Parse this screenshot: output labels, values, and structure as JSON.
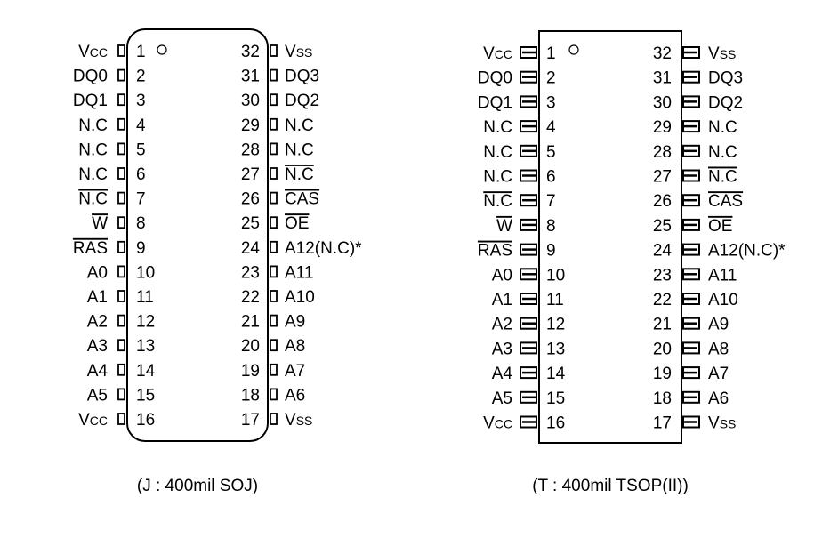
{
  "soj": {
    "caption": "(J : 400mil SOJ)",
    "left_pins": [
      {
        "num": "1",
        "label": "VCC"
      },
      {
        "num": "2",
        "label": "DQ0"
      },
      {
        "num": "3",
        "label": "DQ1"
      },
      {
        "num": "4",
        "label": "N.C"
      },
      {
        "num": "5",
        "label": "N.C"
      },
      {
        "num": "6",
        "label": "N.C"
      },
      {
        "num": "7",
        "label": "N.C"
      },
      {
        "num": "8",
        "label": "W"
      },
      {
        "num": "9",
        "label": "RAS"
      },
      {
        "num": "10",
        "label": "A0"
      },
      {
        "num": "11",
        "label": "A1"
      },
      {
        "num": "12",
        "label": "A2"
      },
      {
        "num": "13",
        "label": "A3"
      },
      {
        "num": "14",
        "label": "A4"
      },
      {
        "num": "15",
        "label": "A5"
      },
      {
        "num": "16",
        "label": "VCC"
      }
    ],
    "right_pins": [
      {
        "num": "32",
        "label": "VSS"
      },
      {
        "num": "31",
        "label": "DQ3"
      },
      {
        "num": "30",
        "label": "DQ2"
      },
      {
        "num": "29",
        "label": "N.C"
      },
      {
        "num": "28",
        "label": "N.C"
      },
      {
        "num": "27",
        "label": "N.C"
      },
      {
        "num": "26",
        "label": "CAS"
      },
      {
        "num": "25",
        "label": "OE"
      },
      {
        "num": "24",
        "label": "A12(N.C)*"
      },
      {
        "num": "23",
        "label": "A11"
      },
      {
        "num": "22",
        "label": "A10"
      },
      {
        "num": "21",
        "label": "A9"
      },
      {
        "num": "20",
        "label": "A8"
      },
      {
        "num": "19",
        "label": "A7"
      },
      {
        "num": "18",
        "label": "A6"
      },
      {
        "num": "17",
        "label": "VSS"
      }
    ]
  },
  "tsop": {
    "caption": "(T : 400mil TSOP(II))",
    "left_pins": [
      {
        "num": "1",
        "label": "VCC"
      },
      {
        "num": "2",
        "label": "DQ0"
      },
      {
        "num": "3",
        "label": "DQ1"
      },
      {
        "num": "4",
        "label": "N.C"
      },
      {
        "num": "5",
        "label": "N.C"
      },
      {
        "num": "6",
        "label": "N.C"
      },
      {
        "num": "7",
        "label": "N.C"
      },
      {
        "num": "8",
        "label": "W"
      },
      {
        "num": "9",
        "label": "RAS"
      },
      {
        "num": "10",
        "label": "A0"
      },
      {
        "num": "11",
        "label": "A1"
      },
      {
        "num": "12",
        "label": "A2"
      },
      {
        "num": "13",
        "label": "A3"
      },
      {
        "num": "14",
        "label": "A4"
      },
      {
        "num": "15",
        "label": "A5"
      },
      {
        "num": "16",
        "label": "VCC"
      }
    ],
    "right_pins": [
      {
        "num": "32",
        "label": "VSS"
      },
      {
        "num": "31",
        "label": "DQ3"
      },
      {
        "num": "30",
        "label": "DQ2"
      },
      {
        "num": "29",
        "label": "N.C"
      },
      {
        "num": "28",
        "label": "N.C"
      },
      {
        "num": "27",
        "label": "N.C"
      },
      {
        "num": "26",
        "label": "CAS"
      },
      {
        "num": "25",
        "label": "OE"
      },
      {
        "num": "24",
        "label": "A12(N.C)*"
      },
      {
        "num": "23",
        "label": "A11"
      },
      {
        "num": "22",
        "label": "A10"
      },
      {
        "num": "21",
        "label": "A9"
      },
      {
        "num": "20",
        "label": "A8"
      },
      {
        "num": "19",
        "label": "A7"
      },
      {
        "num": "18",
        "label": "A6"
      },
      {
        "num": "17",
        "label": "VSS"
      }
    ]
  }
}
